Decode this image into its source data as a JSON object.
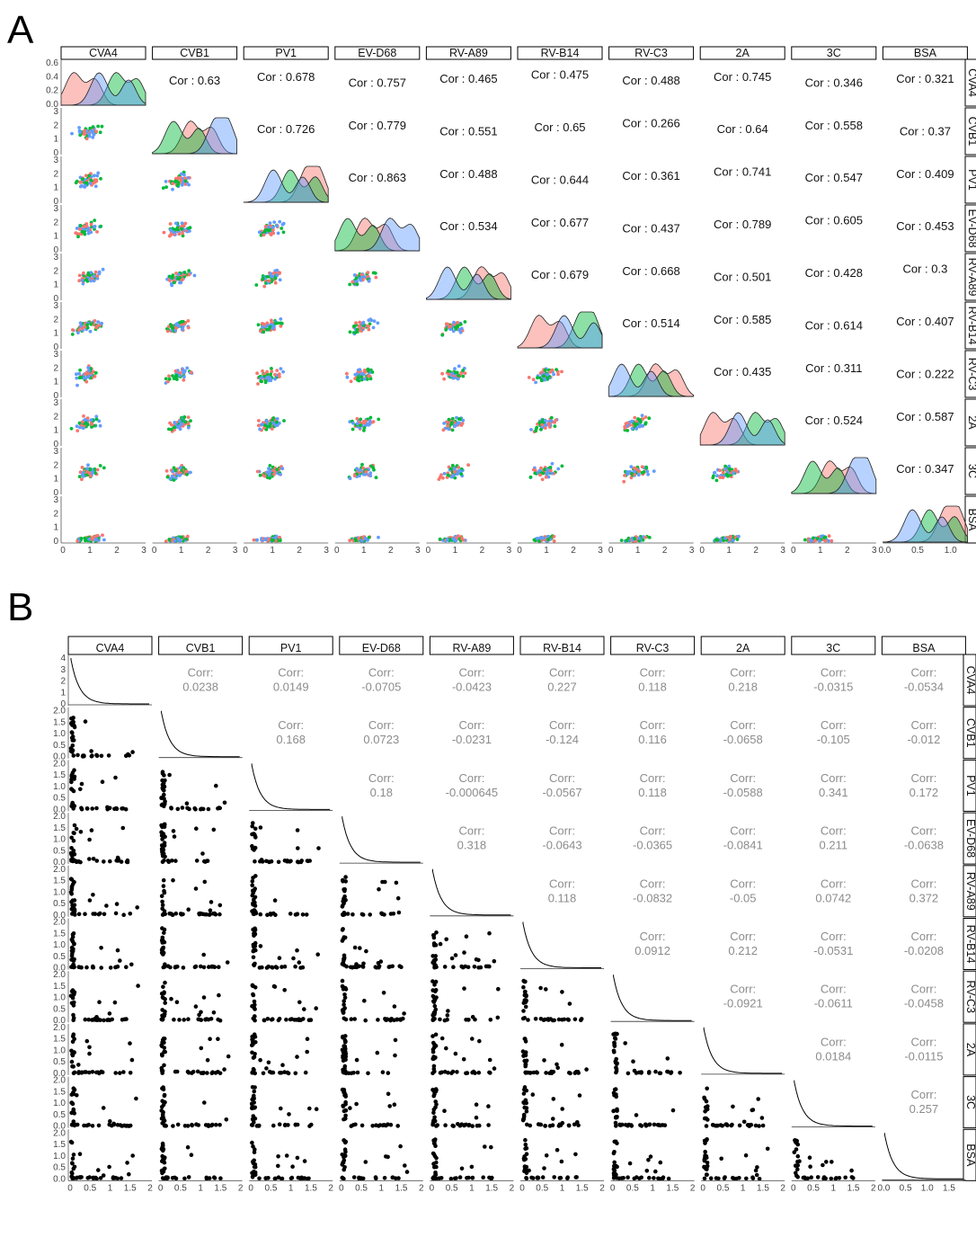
{
  "panels": [
    {
      "id": "A",
      "label": "A",
      "variables": [
        "CVA4",
        "CVB1",
        "PV1",
        "EV-D68",
        "RV-A89",
        "RV-B14",
        "RV-C3",
        "2A",
        "3C",
        "BSA"
      ],
      "cor_prefix": "Cor : ",
      "group_colors": [
        "#F8766D",
        "#00BA38",
        "#619CFF"
      ],
      "density_axis": {
        "ticks": [
          "0.6",
          "0.4",
          "0.2",
          "0.0"
        ]
      },
      "scatter_y_ticks": [
        "3",
        "2",
        "1",
        "0"
      ],
      "x_ticks_default": [
        "0",
        "1",
        "2",
        "3"
      ],
      "x_ticks_last": [
        "0.0",
        "0.5",
        "1.0"
      ],
      "correlations": [
        [
          "0.63",
          "0.678",
          "0.757",
          "0.465",
          "0.475",
          "0.488",
          "0.745",
          "0.346",
          "0.321"
        ],
        [
          "0.726",
          "0.779",
          "0.551",
          "0.65",
          "0.266",
          "0.64",
          "0.558",
          "0.37"
        ],
        [
          "0.863",
          "0.488",
          "0.644",
          "0.361",
          "0.741",
          "0.547",
          "0.409"
        ],
        [
          "0.534",
          "0.677",
          "0.437",
          "0.789",
          "0.605",
          "0.453"
        ],
        [
          "0.679",
          "0.668",
          "0.501",
          "0.428",
          "0.3"
        ],
        [
          "0.514",
          "0.585",
          "0.614",
          "0.407"
        ],
        [
          "0.435",
          "0.311",
          "0.222"
        ],
        [
          "0.524",
          "0.587"
        ],
        [
          "0.347"
        ]
      ]
    },
    {
      "id": "B",
      "label": "B",
      "variables": [
        "CVA4",
        "CVB1",
        "PV1",
        "EV-D68",
        "RV-A89",
        "RV-B14",
        "RV-C3",
        "2A",
        "3C",
        "BSA"
      ],
      "corr_header": "Corr:",
      "density_axis": {
        "ticks": [
          "4",
          "3",
          "2",
          "1",
          "0"
        ]
      },
      "scatter_y_ticks": [
        "2.0",
        "1.5",
        "1.0",
        "0.5",
        "0.0"
      ],
      "x_ticks_default": [
        "0",
        "0.5",
        "1",
        "1.5",
        "2"
      ],
      "x_ticks_last": [
        "0.0",
        "0.5",
        "1.0",
        "1.5"
      ],
      "correlations": [
        [
          "0.0238",
          "0.0149",
          "-0.0705",
          "-0.0423",
          "0.227",
          "0.118",
          "0.218",
          "-0.0315",
          "-0.0534"
        ],
        [
          "0.168",
          "0.0723",
          "-0.0231",
          "-0.124",
          "0.116",
          "-0.0658",
          "-0.105",
          "-0.012"
        ],
        [
          "0.18",
          "-0.000645",
          "-0.0567",
          "0.118",
          "-0.0588",
          "0.341",
          "0.172"
        ],
        [
          "0.318",
          "-0.0643",
          "-0.0365",
          "-0.0841",
          "0.211",
          "-0.0638"
        ],
        [
          "0.118",
          "-0.0832",
          "-0.05",
          "0.0742",
          "0.372"
        ],
        [
          "0.0912",
          "0.212",
          "-0.0531",
          "-0.0208"
        ],
        [
          "-0.0921",
          "-0.0611",
          "-0.0458"
        ],
        [
          "0.0184",
          "-0.0115"
        ],
        [
          "0.257"
        ]
      ]
    }
  ]
}
